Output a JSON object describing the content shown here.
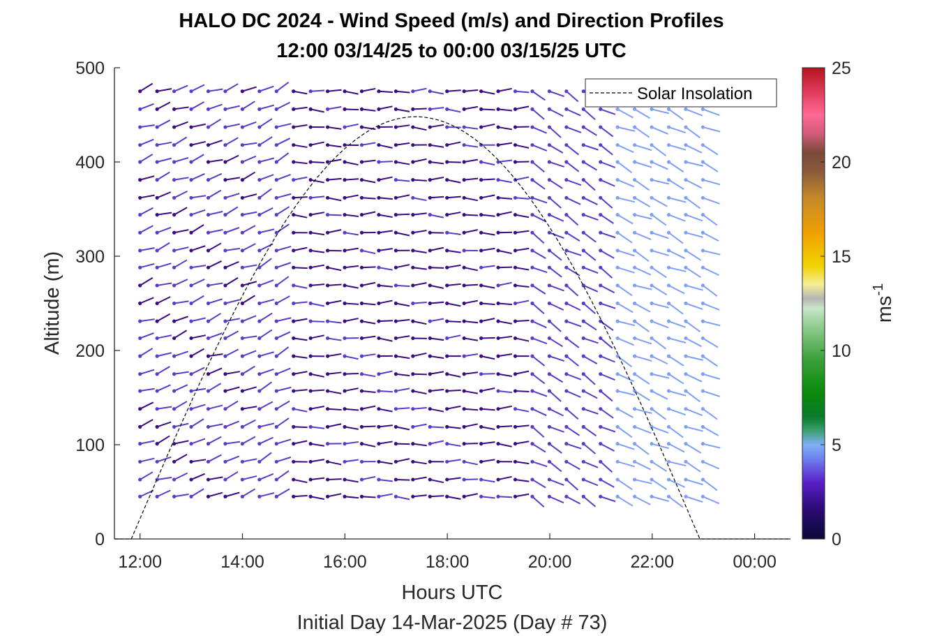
{
  "chart_data": {
    "type": "wind_barb_profile",
    "title": "HALO DC 2024 - Wind Speed (m/s) and Direction Profiles",
    "subtitle": "12:00 03/14/25 to 00:00 03/15/25  UTC",
    "xlabel": "Hours UTC",
    "xlabel2": "Initial Day 14-Mar-2025 (Day # 73)",
    "ylabel": "Altitude (m)",
    "colorbar_label": "ms",
    "colorbar_label_exp": "-1",
    "xlim": [
      11.5,
      24.7
    ],
    "ylim": [
      0,
      500
    ],
    "x_ticks": [
      12,
      14,
      16,
      18,
      20,
      22,
      24
    ],
    "x_tick_labels": [
      "12:00",
      "14:00",
      "16:00",
      "18:00",
      "20:00",
      "22:00",
      "00:00"
    ],
    "y_ticks": [
      0,
      100,
      200,
      300,
      400,
      500
    ],
    "y_tick_labels": [
      "0",
      "100",
      "200",
      "300",
      "400",
      "500"
    ],
    "colorbar_range": [
      0,
      25
    ],
    "colorbar_ticks": [
      0,
      5,
      10,
      15,
      20,
      25
    ],
    "colorbar_tick_labels": [
      "0",
      "5",
      "10",
      "15",
      "20",
      "25"
    ],
    "legend": {
      "label": "Solar Insolation",
      "placement": "top-right"
    },
    "solar_insolation": {
      "sunrise_hour": 11.83,
      "sunset_hour": 22.93,
      "peak_hour": 17.38,
      "peak_altitude_equiv": 448
    },
    "wind_grid": {
      "time_start_hour": 12.0,
      "time_step_hour": 0.333,
      "time_end_hour": 23.0,
      "altitudes": [
        45,
        63,
        82,
        101,
        119,
        138,
        157,
        175,
        194,
        213,
        231,
        250,
        269,
        288,
        306,
        325,
        344,
        362,
        381,
        400,
        418,
        437,
        456,
        475
      ],
      "speed_ms_by_time_window": [
        {
          "from_hour": 12.0,
          "to_hour": 14.0,
          "speed_ms": 3.0,
          "dir_deg_from": 250
        },
        {
          "from_hour": 14.0,
          "to_hour": 14.7,
          "speed_ms": 3.2,
          "dir_deg_from": 245
        },
        {
          "from_hour": 14.7,
          "to_hour": 19.5,
          "speed_ms": 2.5,
          "dir_deg_from": 270
        },
        {
          "from_hour": 19.5,
          "to_hour": 21.0,
          "speed_ms": 3.5,
          "dir_deg_from": 300
        },
        {
          "from_hour": 21.0,
          "to_hour": 23.0,
          "speed_ms": 4.8,
          "dir_deg_from": 295
        }
      ],
      "missing_low_levels_after_hour": 22.0
    }
  },
  "colors": {
    "barb_dark": "#3a0a80",
    "barb_mid": "#5a3ac8",
    "barb_light": "#7f9ef5",
    "axis": "#262626",
    "insolation_line": "#000000"
  }
}
